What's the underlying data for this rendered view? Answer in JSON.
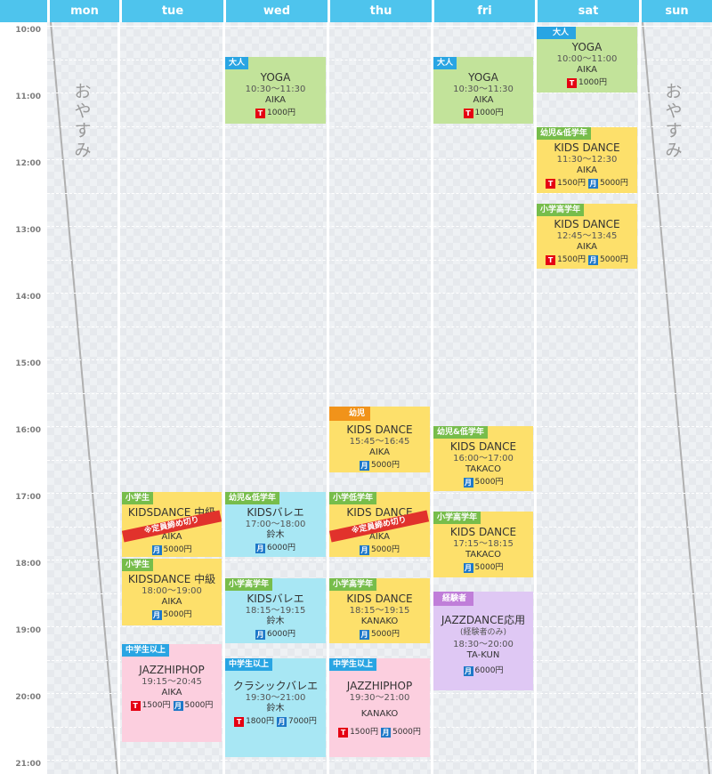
{
  "days": [
    "mon",
    "tue",
    "wed",
    "thu",
    "fri",
    "sat",
    "sun"
  ],
  "times": [
    "10:00",
    "11:00",
    "12:00",
    "13:00",
    "14:00",
    "15:00",
    "16:00",
    "17:00",
    "18:00",
    "19:00",
    "20:00",
    "21:00"
  ],
  "closed_label": "おやすみ",
  "currency": "円",
  "price_badges": {
    "ticket": "T",
    "monthly": "月"
  },
  "tag_colors": {
    "blue": "#29a5e3",
    "green": "#77bd4b",
    "orange": "#f1931a",
    "purple": "#c07ed9"
  },
  "card_colors": {
    "green": "#c2e39a",
    "yellow": "#fde06b",
    "cyan": "#a8e7f4",
    "pink": "#fccfdf",
    "purple": "#dfc8f4"
  },
  "events": [
    {
      "day": "tue",
      "tag": "小学生",
      "tag_color": "green",
      "color": "yellow",
      "title": "KIDSDANCE 中級",
      "time": "",
      "instructor": "AIKA",
      "prices": [
        {
          "type": "monthly",
          "amount": "5000"
        }
      ],
      "ribbon": "※定員締め切り"
    },
    {
      "day": "tue",
      "tag": "小学生",
      "tag_color": "green",
      "color": "yellow",
      "title": "KIDSDANCE 中級",
      "time": "18:00〜19:00",
      "instructor": "AIKA",
      "prices": [
        {
          "type": "monthly",
          "amount": "5000"
        }
      ]
    },
    {
      "day": "tue",
      "tag": "中学生以上",
      "tag_color": "blue",
      "color": "pink",
      "title": "JAZZHIPHOP",
      "time": "19:15〜20:45",
      "instructor": "AIKA",
      "prices": [
        {
          "type": "ticket",
          "amount": "1500"
        },
        {
          "type": "monthly",
          "amount": "5000"
        }
      ]
    },
    {
      "day": "wed",
      "tag": "大人",
      "tag_color": "blue",
      "color": "green",
      "title": "YOGA",
      "time": "10:30〜11:30",
      "instructor": "AIKA",
      "prices": [
        {
          "type": "ticket",
          "amount": "1000"
        }
      ]
    },
    {
      "day": "wed",
      "tag": "幼児&低学年",
      "tag_color": "green",
      "color": "cyan",
      "title": "KIDSバレエ",
      "time": "17:00〜18:00",
      "instructor": "鈴木",
      "prices": [
        {
          "type": "monthly",
          "amount": "6000"
        }
      ]
    },
    {
      "day": "wed",
      "tag": "小学高学年",
      "tag_color": "green",
      "color": "cyan",
      "title": "KIDSバレエ",
      "time": "18:15〜19:15",
      "instructor": "鈴木",
      "prices": [
        {
          "type": "monthly",
          "amount": "6000"
        }
      ]
    },
    {
      "day": "wed",
      "tag": "中学生以上",
      "tag_color": "blue",
      "color": "cyan",
      "title": "クラシックバレエ",
      "time": "19:30〜21:00",
      "instructor": "鈴木",
      "prices": [
        {
          "type": "ticket",
          "amount": "1800"
        },
        {
          "type": "monthly",
          "amount": "7000"
        }
      ]
    },
    {
      "day": "thu",
      "tag": "幼児",
      "tag_color": "orange",
      "color": "yellow",
      "title": "KIDS DANCE",
      "time": "15:45〜16:45",
      "instructor": "AIKA",
      "prices": [
        {
          "type": "monthly",
          "amount": "5000"
        }
      ]
    },
    {
      "day": "thu",
      "tag": "小学低学年",
      "tag_color": "green",
      "color": "yellow",
      "title": "KIDS DANCE",
      "time": "",
      "instructor": "AIKA",
      "prices": [
        {
          "type": "monthly",
          "amount": "5000"
        }
      ],
      "ribbon": "※定員締め切り"
    },
    {
      "day": "thu",
      "tag": "小学高学年",
      "tag_color": "green",
      "color": "yellow",
      "title": "KIDS DANCE",
      "time": "18:15〜19:15",
      "instructor": "KANAKO",
      "prices": [
        {
          "type": "monthly",
          "amount": "5000"
        }
      ]
    },
    {
      "day": "thu",
      "tag": "中学生以上",
      "tag_color": "blue",
      "color": "pink",
      "title": "JAZZHIPHOP",
      "time": "19:30〜21:00",
      "instructor": "KANAKO",
      "prices": [
        {
          "type": "ticket",
          "amount": "1500"
        },
        {
          "type": "monthly",
          "amount": "5000"
        }
      ]
    },
    {
      "day": "fri",
      "tag": "大人",
      "tag_color": "blue",
      "color": "green",
      "title": "YOGA",
      "time": "10:30〜11:30",
      "instructor": "AIKA",
      "prices": [
        {
          "type": "ticket",
          "amount": "1000"
        }
      ]
    },
    {
      "day": "fri",
      "tag": "幼児&低学年",
      "tag_color": "green",
      "color": "yellow",
      "title": "KIDS DANCE",
      "time": "16:00〜17:00",
      "instructor": "TAKACO",
      "prices": [
        {
          "type": "monthly",
          "amount": "5000"
        }
      ]
    },
    {
      "day": "fri",
      "tag": "小学高学年",
      "tag_color": "green",
      "color": "yellow",
      "title": "KIDS DANCE",
      "time": "17:15〜18:15",
      "instructor": "TAKACO",
      "prices": [
        {
          "type": "monthly",
          "amount": "5000"
        }
      ]
    },
    {
      "day": "fri",
      "tag": "経験者",
      "tag_color": "purple",
      "color": "purple",
      "title": "JAZZDANCE応用",
      "subtitle": "(経験者のみ)",
      "time": "18:30〜20:00",
      "instructor": "TA-KUN",
      "prices": [
        {
          "type": "monthly",
          "amount": "6000"
        }
      ]
    },
    {
      "day": "sat",
      "tag": "大人",
      "tag_color": "blue",
      "color": "green",
      "title": "YOGA",
      "time": "10:00〜11:00",
      "instructor": "AIKA",
      "prices": [
        {
          "type": "ticket",
          "amount": "1000"
        }
      ]
    },
    {
      "day": "sat",
      "tag": "幼児&低学年",
      "tag_color": "green",
      "color": "yellow",
      "title": "KIDS DANCE",
      "time": "11:30〜12:30",
      "instructor": "AIKA",
      "prices": [
        {
          "type": "ticket",
          "amount": "1500"
        },
        {
          "type": "monthly",
          "amount": "5000"
        }
      ]
    },
    {
      "day": "sat",
      "tag": "小学高学年",
      "tag_color": "green",
      "color": "yellow",
      "title": "KIDS DANCE",
      "time": "12:45〜13:45",
      "instructor": "AIKA",
      "prices": [
        {
          "type": "ticket",
          "amount": "1500"
        },
        {
          "type": "monthly",
          "amount": "5000"
        }
      ]
    }
  ]
}
